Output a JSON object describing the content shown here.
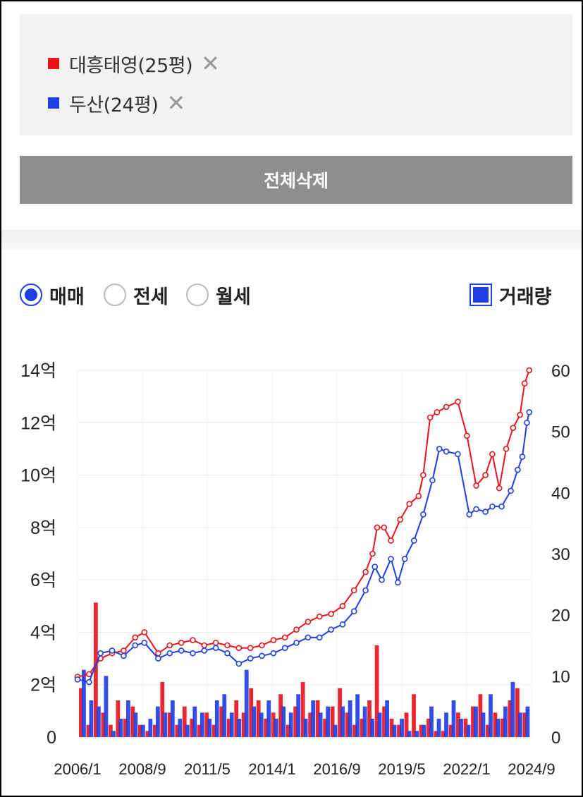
{
  "legend": {
    "items": [
      {
        "label": "대흥태영(25평)",
        "color": "#e8141c"
      },
      {
        "label": "두산(24평)",
        "color": "#1f3fe6"
      }
    ],
    "remove_icon": "close-icon"
  },
  "delete_all_label": "전체삭제",
  "trade_type": {
    "options": [
      "매매",
      "전세",
      "월세"
    ],
    "selected": "매매"
  },
  "volume_toggle": {
    "label": "거래량",
    "checked": true
  },
  "chart_data": {
    "type": "line",
    "xlabel": "",
    "ylabel_left": "",
    "ylabel_right": "",
    "x_ticks": [
      "2006/1",
      "2008/9",
      "2011/5",
      "2014/1",
      "2016/9",
      "2019/5",
      "2022/1",
      "2024/9"
    ],
    "x_range": [
      2006.0,
      2025.7
    ],
    "y_left_ticks": [
      "0",
      "2억",
      "4억",
      "6억",
      "8억",
      "10억",
      "12억",
      "14억"
    ],
    "y_left_range": [
      0,
      14
    ],
    "y_left_unit": "억",
    "y_right_ticks": [
      "0",
      "10",
      "20",
      "30",
      "40",
      "50",
      "60"
    ],
    "y_right_range": [
      0,
      60
    ],
    "grid": true,
    "series": [
      {
        "name": "대흥태영(25평)",
        "color": "#e8141c",
        "price_points": [
          [
            2006.0,
            2.3
          ],
          [
            2006.5,
            2.4
          ],
          [
            2007.0,
            3.0
          ],
          [
            2007.5,
            3.2
          ],
          [
            2008.0,
            3.3
          ],
          [
            2008.5,
            3.8
          ],
          [
            2008.9,
            4.0
          ],
          [
            2009.5,
            3.2
          ],
          [
            2010.0,
            3.5
          ],
          [
            2010.5,
            3.6
          ],
          [
            2011.0,
            3.7
          ],
          [
            2011.5,
            3.5
          ],
          [
            2012.0,
            3.6
          ],
          [
            2012.5,
            3.5
          ],
          [
            2013.0,
            3.4
          ],
          [
            2013.5,
            3.4
          ],
          [
            2014.0,
            3.5
          ],
          [
            2014.5,
            3.7
          ],
          [
            2015.0,
            3.8
          ],
          [
            2015.5,
            4.1
          ],
          [
            2016.0,
            4.4
          ],
          [
            2016.5,
            4.6
          ],
          [
            2017.0,
            4.7
          ],
          [
            2017.5,
            5.0
          ],
          [
            2018.0,
            5.6
          ],
          [
            2018.5,
            6.3
          ],
          [
            2018.8,
            7.0
          ],
          [
            2019.0,
            8.0
          ],
          [
            2019.3,
            8.0
          ],
          [
            2019.6,
            7.5
          ],
          [
            2020.0,
            8.3
          ],
          [
            2020.4,
            8.9
          ],
          [
            2020.8,
            9.2
          ],
          [
            2021.0,
            10.0
          ],
          [
            2021.3,
            12.2
          ],
          [
            2021.6,
            12.4
          ],
          [
            2022.0,
            12.6
          ],
          [
            2022.5,
            12.8
          ],
          [
            2022.9,
            11.5
          ],
          [
            2023.3,
            9.6
          ],
          [
            2023.7,
            10.0
          ],
          [
            2024.0,
            10.8
          ],
          [
            2024.3,
            9.5
          ],
          [
            2024.6,
            11.0
          ],
          [
            2024.9,
            11.8
          ],
          [
            2025.2,
            12.3
          ],
          [
            2025.4,
            13.5
          ],
          [
            2025.6,
            14.0
          ]
        ],
        "volume": [
          8,
          2,
          22,
          4,
          2,
          6,
          3,
          5,
          2,
          1,
          2,
          9,
          4,
          2,
          5,
          3,
          2,
          4,
          2,
          5,
          3,
          6,
          4,
          8,
          6,
          3,
          4,
          7,
          2,
          5,
          9,
          4,
          6,
          3,
          5,
          8,
          4,
          2,
          3,
          6,
          15,
          5,
          3,
          2,
          4,
          7,
          2,
          3,
          1,
          1,
          2,
          4,
          3,
          5,
          7,
          2,
          4,
          3,
          6,
          8,
          4
        ]
      },
      {
        "name": "두산(24평)",
        "color": "#1f3fe6",
        "price_points": [
          [
            2006.0,
            2.2
          ],
          [
            2006.5,
            2.1
          ],
          [
            2007.0,
            3.2
          ],
          [
            2007.5,
            3.3
          ],
          [
            2008.0,
            3.1
          ],
          [
            2008.5,
            3.5
          ],
          [
            2008.9,
            3.6
          ],
          [
            2009.5,
            3.0
          ],
          [
            2010.0,
            3.2
          ],
          [
            2010.5,
            3.3
          ],
          [
            2011.0,
            3.2
          ],
          [
            2011.5,
            3.3
          ],
          [
            2012.0,
            3.4
          ],
          [
            2012.5,
            3.2
          ],
          [
            2013.0,
            2.8
          ],
          [
            2013.5,
            3.0
          ],
          [
            2014.0,
            3.1
          ],
          [
            2014.5,
            3.2
          ],
          [
            2015.0,
            3.4
          ],
          [
            2015.5,
            3.6
          ],
          [
            2016.0,
            3.8
          ],
          [
            2016.5,
            3.8
          ],
          [
            2017.0,
            4.1
          ],
          [
            2017.5,
            4.3
          ],
          [
            2018.0,
            4.8
          ],
          [
            2018.5,
            5.6
          ],
          [
            2018.9,
            6.5
          ],
          [
            2019.2,
            6.0
          ],
          [
            2019.6,
            6.8
          ],
          [
            2019.9,
            5.9
          ],
          [
            2020.2,
            6.8
          ],
          [
            2020.6,
            7.5
          ],
          [
            2021.0,
            8.5
          ],
          [
            2021.4,
            9.8
          ],
          [
            2021.7,
            11.0
          ],
          [
            2022.0,
            10.9
          ],
          [
            2022.5,
            10.8
          ],
          [
            2023.0,
            8.5
          ],
          [
            2023.3,
            8.7
          ],
          [
            2023.7,
            8.6
          ],
          [
            2024.0,
            8.8
          ],
          [
            2024.4,
            8.8
          ],
          [
            2024.8,
            9.4
          ],
          [
            2025.1,
            10.2
          ],
          [
            2025.3,
            10.7
          ],
          [
            2025.5,
            12.0
          ],
          [
            2025.6,
            12.4
          ]
        ],
        "volume": [
          11,
          6,
          5,
          10,
          1,
          3,
          6,
          4,
          2,
          3,
          5,
          4,
          6,
          3,
          2,
          5,
          4,
          3,
          6,
          7,
          4,
          3,
          11,
          5,
          4,
          6,
          3,
          5,
          4,
          7,
          3,
          6,
          4,
          5,
          2,
          5,
          6,
          7,
          5,
          3,
          4,
          6,
          2,
          3,
          1,
          1,
          2,
          5,
          3,
          4,
          6,
          3,
          2,
          5,
          4,
          7,
          3,
          5,
          9,
          4,
          5
        ]
      }
    ]
  }
}
